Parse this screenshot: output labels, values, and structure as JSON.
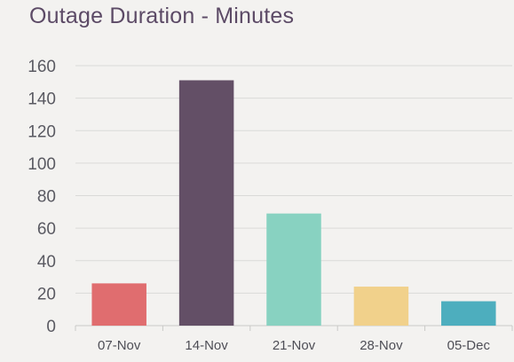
{
  "chart_data": {
    "type": "bar",
    "title": "Outage Duration - Minutes",
    "xlabel": "",
    "ylabel": "",
    "categories": [
      "07-Nov",
      "14-Nov",
      "21-Nov",
      "28-Nov",
      "05-Dec"
    ],
    "values": [
      26,
      151,
      69,
      24,
      15
    ],
    "colors": [
      "#e06d6f",
      "#634f66",
      "#88d2c1",
      "#f1d18b",
      "#4daebe"
    ],
    "ylim": [
      0,
      160
    ],
    "yticks": [
      0,
      20,
      40,
      60,
      80,
      100,
      120,
      140,
      160
    ],
    "grid": true,
    "legend": "none",
    "title_color": "#5c4a66",
    "grid_color": "#dadad8",
    "axis_color": "#c9c9c7"
  }
}
